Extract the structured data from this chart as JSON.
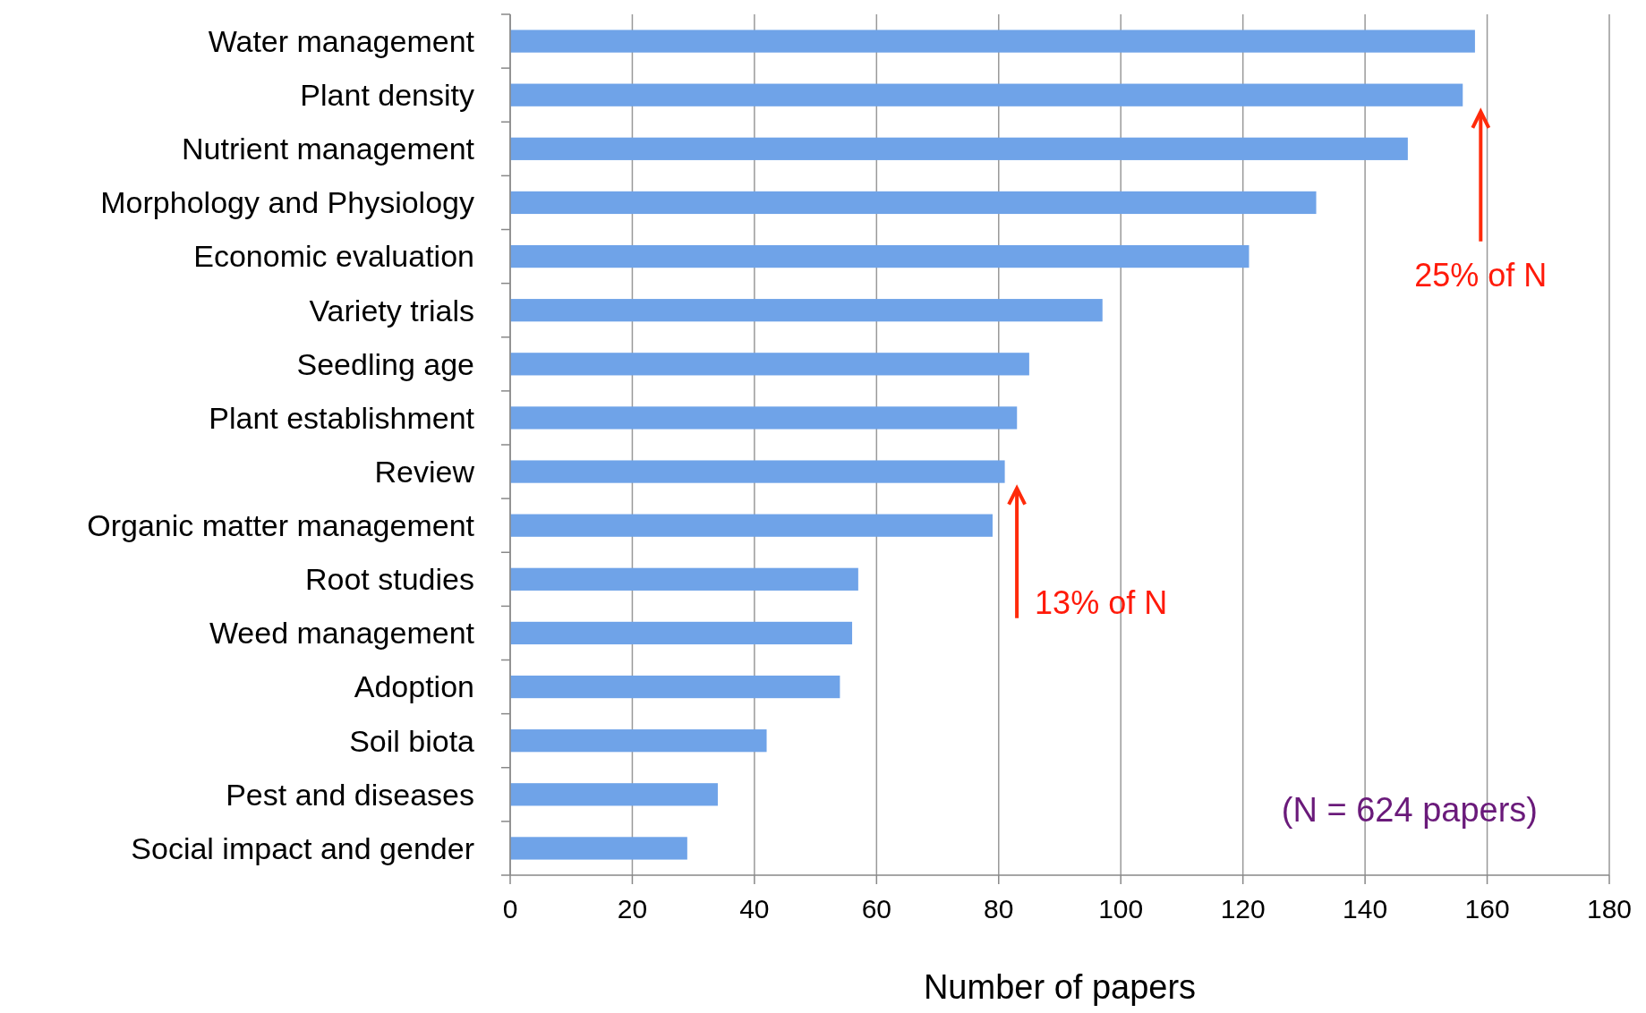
{
  "chart_data": {
    "type": "bar",
    "orientation": "horizontal",
    "xlabel": "Number of papers",
    "categories": [
      "Water management",
      "Plant density",
      "Nutrient management",
      "Morphology and Physiology",
      "Economic evaluation",
      "Variety trials",
      "Seedling age",
      "Plant establishment",
      "Review",
      "Organic matter management",
      "Root  studies",
      "Weed management",
      "Adoption",
      "Soil biota",
      "Pest and diseases",
      "Social impact and gender"
    ],
    "values": [
      158,
      156,
      147,
      132,
      121,
      97,
      85,
      83,
      81,
      79,
      57,
      56,
      54,
      42,
      34,
      29
    ],
    "color": "#6fa3e8",
    "xlim": [
      0,
      180
    ],
    "xticks": [
      0,
      20,
      40,
      60,
      80,
      100,
      120,
      140,
      160,
      180
    ],
    "grid": "x",
    "annotations": [
      "25% of N",
      "13% of N",
      "(N = 624 papers)"
    ]
  }
}
